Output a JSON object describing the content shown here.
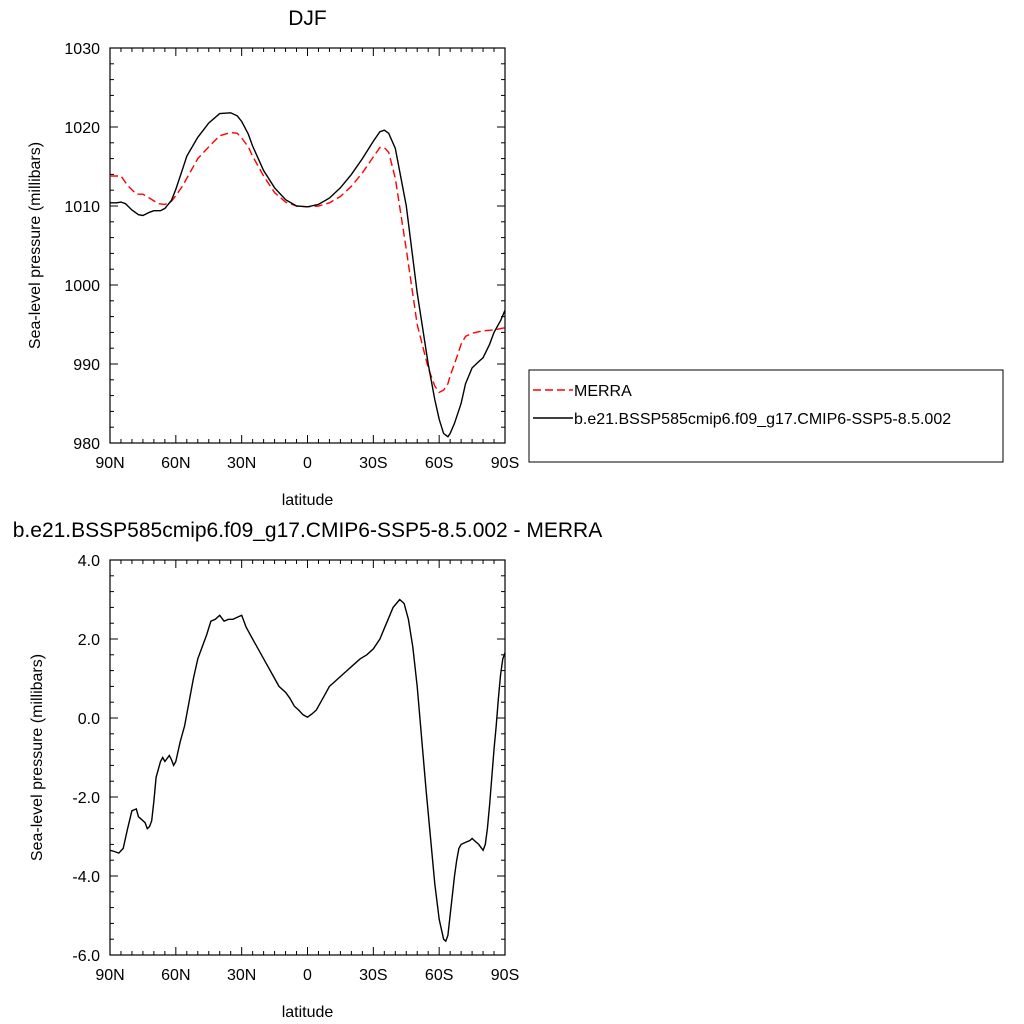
{
  "chart_data": [
    {
      "type": "line",
      "title": "DJF",
      "xlabel": "latitude",
      "ylabel": "Sea-level pressure (millibars)",
      "xlim": [
        90,
        -90
      ],
      "ylim": [
        980,
        1030
      ],
      "x_ticks": [
        90,
        60,
        30,
        0,
        -30,
        -60,
        -90
      ],
      "x_tick_labels": [
        "90N",
        "60N",
        "30N",
        "0",
        "30S",
        "60S",
        "90S"
      ],
      "y_ticks": [
        980,
        990,
        1000,
        1010,
        1020,
        1030
      ],
      "y_tick_labels": [
        "980",
        "990",
        "1000",
        "1010",
        "1020",
        "1030"
      ],
      "grid": false,
      "legend_position": "right",
      "series": [
        {
          "name": "MERRA",
          "color": "#ff0000",
          "dash": "dashed",
          "x": [
            90,
            85,
            82,
            78,
            75,
            72,
            68,
            65,
            62,
            60,
            57,
            55,
            50,
            45,
            40,
            35,
            32,
            30,
            27,
            25,
            20,
            15,
            10,
            5,
            0,
            -5,
            -10,
            -15,
            -20,
            -25,
            -30,
            -33,
            -35,
            -37,
            -40,
            -45,
            -50,
            -55,
            -58,
            -60,
            -62,
            -64,
            -65,
            -67,
            -70,
            -72,
            -75,
            -80,
            -85,
            -90
          ],
          "y": [
            1013.8,
            1013.8,
            1012.6,
            1011.5,
            1011.5,
            1011.0,
            1010.3,
            1010.2,
            1010.6,
            1011.3,
            1012.5,
            1013.5,
            1016.0,
            1017.5,
            1018.9,
            1019.3,
            1019.2,
            1018.6,
            1017.5,
            1016.3,
            1013.8,
            1011.7,
            1010.5,
            1010.0,
            1009.9,
            1010.0,
            1010.4,
            1011.2,
            1012.5,
            1014.2,
            1016.2,
            1017.4,
            1017.4,
            1016.8,
            1013.5,
            1004.5,
            995.0,
            989.5,
            987.2,
            986.4,
            986.7,
            987.5,
            988.5,
            990.0,
            992.5,
            993.5,
            993.9,
            994.2,
            994.3,
            994.6
          ]
        },
        {
          "name": "b.e21.BSSP585cmip6.f09_g17.CMIP6-SSP5-8.5.002",
          "color": "#000000",
          "dash": "solid",
          "x": [
            90,
            87,
            85,
            83,
            80,
            77,
            75,
            72,
            70,
            67,
            65,
            62,
            60,
            57,
            55,
            50,
            45,
            40,
            35,
            32,
            30,
            27,
            25,
            20,
            15,
            10,
            5,
            0,
            -5,
            -10,
            -15,
            -20,
            -25,
            -30,
            -33,
            -35,
            -37,
            -40,
            -45,
            -50,
            -55,
            -58,
            -60,
            -62,
            -64,
            -65,
            -67,
            -70,
            -72,
            -75,
            -78,
            -80,
            -83,
            -85,
            -88,
            -90
          ],
          "y": [
            1010.4,
            1010.4,
            1010.5,
            1010.3,
            1009.5,
            1008.9,
            1008.8,
            1009.2,
            1009.4,
            1009.4,
            1009.7,
            1010.7,
            1012.1,
            1014.6,
            1016.3,
            1018.7,
            1020.5,
            1021.7,
            1021.8,
            1021.4,
            1020.7,
            1019.1,
            1017.6,
            1014.5,
            1012.3,
            1010.8,
            1010.0,
            1009.9,
            1010.2,
            1011.0,
            1012.3,
            1014.0,
            1016.0,
            1018.2,
            1019.4,
            1019.6,
            1019.2,
            1017.3,
            1010.0,
            999.0,
            990.0,
            985.5,
            983.0,
            981.2,
            980.8,
            981.2,
            982.5,
            985.0,
            987.5,
            989.5,
            990.3,
            990.8,
            992.5,
            994.0,
            995.5,
            996.8
          ]
        }
      ]
    },
    {
      "type": "line",
      "title": "b.e21.BSSP585cmip6.f09_g17.CMIP6-SSP5-8.5.002 - MERRA",
      "xlabel": "latitude",
      "ylabel": "Sea-level pressure (millibars)",
      "xlim": [
        90,
        -90
      ],
      "ylim": [
        -6,
        4
      ],
      "x_ticks": [
        90,
        60,
        30,
        0,
        -30,
        -60,
        -90
      ],
      "x_tick_labels": [
        "90N",
        "60N",
        "30N",
        "0",
        "30S",
        "60S",
        "90S"
      ],
      "y_ticks": [
        -6,
        -4,
        -2,
        0,
        2,
        4
      ],
      "y_tick_labels": [
        "-6.0",
        "-4.0",
        "-2.0",
        "0.0",
        "2.0",
        "4.0"
      ],
      "grid": false,
      "series": [
        {
          "color": "#000000",
          "dash": "solid",
          "x": [
            90,
            88,
            86,
            84,
            82,
            80,
            78,
            77,
            76,
            74,
            73,
            72,
            71,
            70,
            69,
            67,
            66,
            65,
            63,
            62,
            61,
            60,
            58,
            56,
            54,
            52,
            50,
            48,
            46,
            44,
            42,
            40,
            38,
            36,
            34,
            32,
            30,
            28,
            25,
            22,
            19,
            16,
            13,
            10,
            8,
            6,
            4,
            2,
            0,
            -2,
            -4,
            -6,
            -8,
            -10,
            -12,
            -15,
            -18,
            -21,
            -24,
            -27,
            -30,
            -33,
            -36,
            -39,
            -42,
            -44,
            -46,
            -48,
            -50,
            -52,
            -54,
            -56,
            -58,
            -60,
            -62,
            -63,
            -64,
            -65,
            -66,
            -67,
            -68,
            -69,
            -70,
            -72,
            -74,
            -75,
            -76,
            -78,
            -80,
            -81,
            -82,
            -83,
            -84,
            -85,
            -86,
            -87,
            -88,
            -89,
            -90
          ],
          "y": [
            -3.35,
            -3.38,
            -3.42,
            -3.3,
            -2.8,
            -2.35,
            -2.3,
            -2.5,
            -2.55,
            -2.65,
            -2.8,
            -2.75,
            -2.6,
            -2.1,
            -1.5,
            -1.1,
            -1.0,
            -1.1,
            -0.95,
            -1.05,
            -1.2,
            -1.1,
            -0.6,
            -0.2,
            0.4,
            1.0,
            1.5,
            1.8,
            2.1,
            2.45,
            2.5,
            2.6,
            2.45,
            2.5,
            2.5,
            2.55,
            2.6,
            2.3,
            2.0,
            1.7,
            1.4,
            1.1,
            0.8,
            0.65,
            0.5,
            0.3,
            0.2,
            0.08,
            0.02,
            0.1,
            0.2,
            0.4,
            0.6,
            0.8,
            0.9,
            1.05,
            1.2,
            1.35,
            1.5,
            1.6,
            1.75,
            2.0,
            2.4,
            2.8,
            3.0,
            2.9,
            2.5,
            1.8,
            0.8,
            -0.5,
            -1.8,
            -3.0,
            -4.2,
            -5.1,
            -5.6,
            -5.65,
            -5.5,
            -5.0,
            -4.5,
            -4.0,
            -3.6,
            -3.3,
            -3.2,
            -3.15,
            -3.1,
            -3.05,
            -3.1,
            -3.2,
            -3.35,
            -3.2,
            -2.8,
            -2.2,
            -1.5,
            -0.8,
            -0.2,
            0.5,
            1.1,
            1.5,
            1.65
          ]
        }
      ]
    }
  ]
}
